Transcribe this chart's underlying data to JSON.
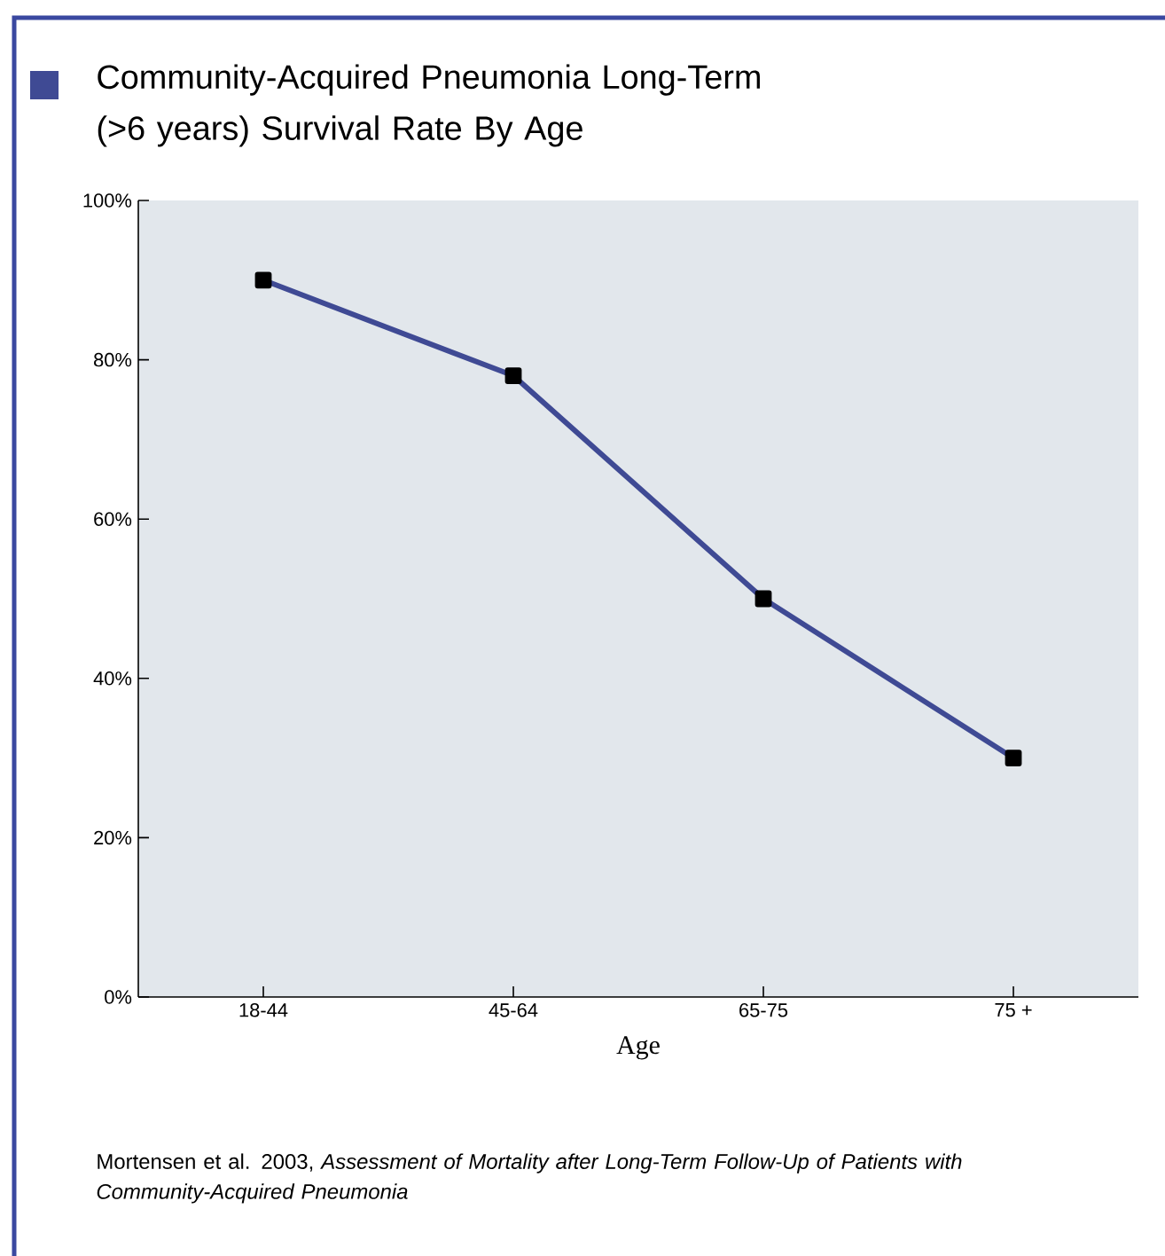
{
  "chart_data": {
    "type": "line",
    "title": "Community-Acquired Pneumonia Long-Term (>6 years) Survival Rate By Age",
    "xlabel": "Age",
    "categories": [
      "18-44",
      "45-64",
      "65-75",
      "75 +"
    ],
    "series": [
      {
        "color": "#3f4a94",
        "values": [
          90,
          78,
          50,
          30
        ]
      }
    ],
    "ylim": [
      0,
      100
    ],
    "yticks": [
      {
        "value": 0,
        "label": "0%"
      },
      {
        "value": 20,
        "label": "20%"
      },
      {
        "value": 40,
        "label": "40%"
      },
      {
        "value": 60,
        "label": "60%"
      },
      {
        "value": 80,
        "label": "80%"
      },
      {
        "value": 100,
        "label": "100%"
      }
    ],
    "marker": "square",
    "line_style": "solid",
    "annotations": [
      "Mortensen et al. 2003, *Assessment of Mortality after Long-Term Follow-Up of Patients with Community-Acquired Pneumonia*"
    ]
  }
}
